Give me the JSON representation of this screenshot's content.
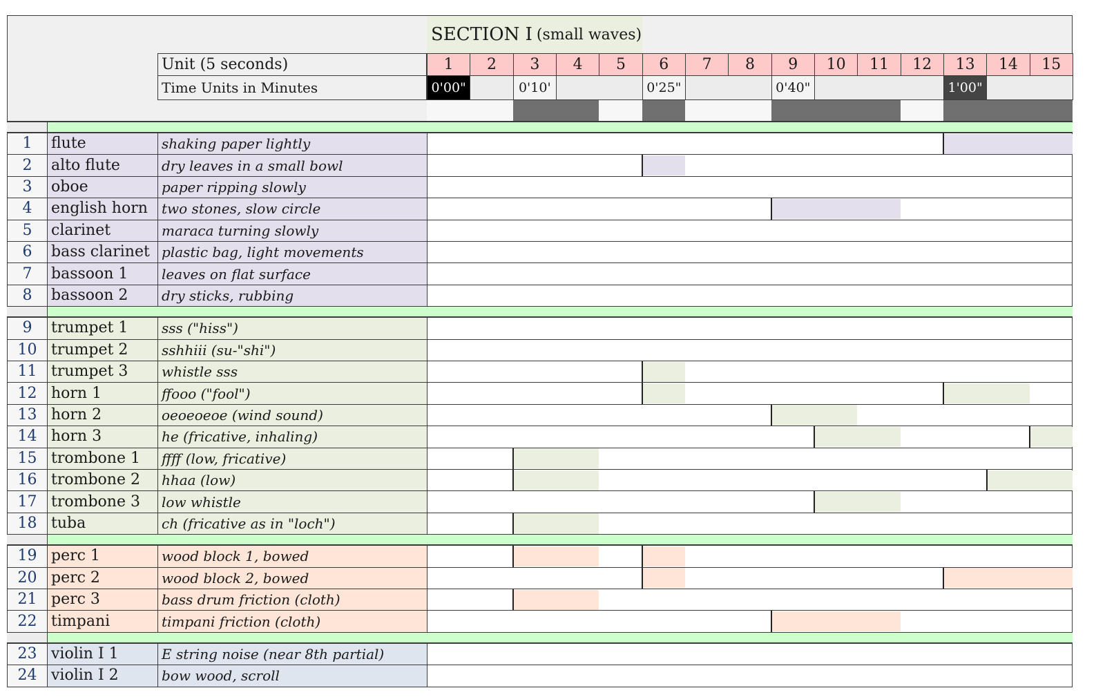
{
  "section": {
    "title": "SECTION I",
    "subtitle": "(small waves)"
  },
  "header": {
    "unit_label": "Unit (5 seconds)",
    "time_label": "Time Units in Minutes",
    "units": [
      "1",
      "2",
      "3",
      "4",
      "5",
      "6",
      "7",
      "8",
      "9",
      "10",
      "11",
      "12",
      "13",
      "14",
      "15"
    ],
    "time_marks": [
      {
        "unit": 1,
        "label": "0'00\"",
        "dark": true
      },
      {
        "unit": 3,
        "label": "0'10'",
        "dark": false
      },
      {
        "unit": 6,
        "label": "0'25\"",
        "dark": false
      },
      {
        "unit": 9,
        "label": "0'40\"",
        "dark": false
      },
      {
        "unit": 13,
        "label": "1'00\"",
        "dark": true
      }
    ],
    "activity_bar": [
      0,
      0,
      1,
      1,
      0,
      1,
      0,
      0,
      1,
      1,
      1,
      0,
      1,
      1,
      1
    ]
  },
  "colors": {
    "woodwind": "#e3dfec",
    "brass": "#ebefdf",
    "percussion": "#fde5d8",
    "strings": "#dfe5ef",
    "separator": "#ccffcc",
    "unit_header": "#fdc9c9",
    "section_title": "#ebefdf",
    "header_bg": "#f0f0f0"
  },
  "groups": [
    {
      "family": "woodwind",
      "rows": [
        {
          "num": "1",
          "instrument": "flute",
          "technique": "shaking paper lightly",
          "active": [
            [
              13,
              15
            ]
          ],
          "entries": [
            13
          ]
        },
        {
          "num": "2",
          "instrument": "alto flute",
          "technique": "dry leaves in a small bowl",
          "active": [
            [
              6,
              6
            ]
          ],
          "entries": [
            6
          ]
        },
        {
          "num": "3",
          "instrument": "oboe",
          "technique": "paper ripping slowly",
          "active": [],
          "entries": []
        },
        {
          "num": "4",
          "instrument": "english horn",
          "technique": "two stones, slow circle",
          "active": [
            [
              9,
              11
            ]
          ],
          "entries": [
            9
          ]
        },
        {
          "num": "5",
          "instrument": "clarinet",
          "technique": "maraca turning slowly",
          "active": [],
          "entries": []
        },
        {
          "num": "6",
          "instrument": "bass clarinet",
          "technique": "plastic bag, light movements",
          "active": [],
          "entries": []
        },
        {
          "num": "7",
          "instrument": "bassoon 1",
          "technique": "leaves on flat surface",
          "active": [],
          "entries": []
        },
        {
          "num": "8",
          "instrument": "bassoon 2",
          "technique": "dry sticks, rubbing",
          "active": [],
          "entries": []
        }
      ]
    },
    {
      "family": "brass",
      "rows": [
        {
          "num": "9",
          "instrument": "trumpet 1",
          "technique": "sss (\"hiss\")",
          "active": [],
          "entries": []
        },
        {
          "num": "10",
          "instrument": "trumpet 2",
          "technique": "sshhiii (su-\"shi\")",
          "active": [],
          "entries": []
        },
        {
          "num": "11",
          "instrument": "trumpet 3",
          "technique": "whistle sss",
          "active": [
            [
              6,
              6
            ]
          ],
          "entries": [
            6
          ]
        },
        {
          "num": "12",
          "instrument": "horn 1",
          "technique": "ffooo (\"fool\")",
          "active": [
            [
              6,
              6
            ],
            [
              13,
              14
            ]
          ],
          "entries": [
            6,
            13
          ]
        },
        {
          "num": "13",
          "instrument": "horn 2",
          "technique": "oeoeoeoe (wind sound)",
          "active": [
            [
              9,
              10
            ]
          ],
          "entries": [
            9
          ]
        },
        {
          "num": "14",
          "instrument": "horn 3",
          "technique": "he (fricative, inhaling)",
          "active": [
            [
              10,
              11
            ],
            [
              15,
              15
            ]
          ],
          "entries": [
            10,
            15
          ]
        },
        {
          "num": "15",
          "instrument": "trombone 1",
          "technique": "ffff (low, fricative)",
          "active": [
            [
              3,
              4
            ]
          ],
          "entries": [
            3
          ]
        },
        {
          "num": "16",
          "instrument": "trombone 2",
          "technique": "hhaa (low)",
          "active": [
            [
              3,
              4
            ],
            [
              14,
              15
            ]
          ],
          "entries": [
            3,
            14
          ]
        },
        {
          "num": "17",
          "instrument": "trombone 3",
          "technique": "low whistle",
          "active": [
            [
              10,
              11
            ]
          ],
          "entries": [
            10
          ]
        },
        {
          "num": "18",
          "instrument": "tuba",
          "technique": "ch (fricative as in \"loch\")",
          "active": [
            [
              3,
              4
            ]
          ],
          "entries": [
            3
          ]
        }
      ]
    },
    {
      "family": "percussion",
      "rows": [
        {
          "num": "19",
          "instrument": "perc 1",
          "technique": "wood block 1, bowed",
          "active": [
            [
              3,
              4
            ],
            [
              6,
              6
            ]
          ],
          "entries": [
            3,
            6
          ]
        },
        {
          "num": "20",
          "instrument": "perc 2",
          "technique": "wood block 2, bowed",
          "active": [
            [
              6,
              6
            ],
            [
              13,
              15
            ]
          ],
          "entries": [
            6,
            13
          ]
        },
        {
          "num": "21",
          "instrument": "perc 3",
          "technique": "bass drum friction (cloth)",
          "active": [
            [
              3,
              4
            ]
          ],
          "entries": [
            3
          ]
        },
        {
          "num": "22",
          "instrument": "timpani",
          "technique": "timpani friction (cloth)",
          "active": [
            [
              9,
              11
            ]
          ],
          "entries": [
            9
          ]
        }
      ]
    },
    {
      "family": "strings",
      "rows": [
        {
          "num": "23",
          "instrument": "violin I 1",
          "technique": "E string noise (near 8th partial)",
          "active": [],
          "entries": []
        },
        {
          "num": "24",
          "instrument": "violin I 2",
          "technique": "bow wood, scroll",
          "active": [],
          "entries": []
        }
      ]
    }
  ]
}
